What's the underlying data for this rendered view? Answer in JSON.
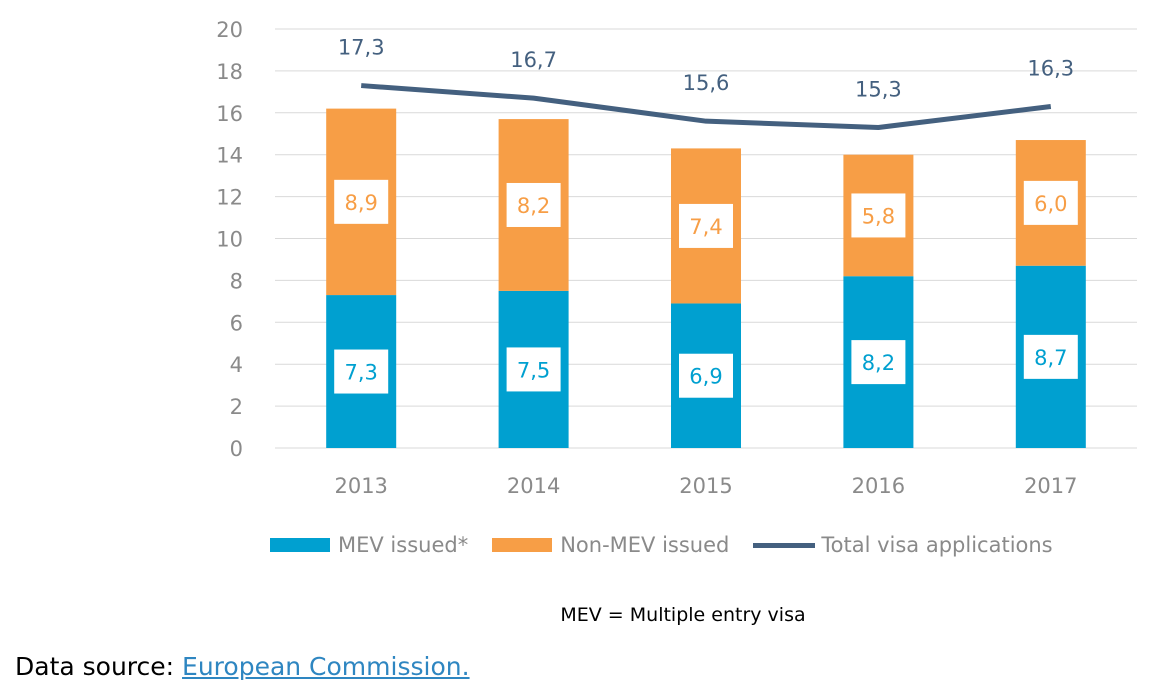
{
  "chart_data": {
    "type": "bar",
    "stacked": true,
    "categories": [
      "2013",
      "2014",
      "2015",
      "2016",
      "2017"
    ],
    "series": [
      {
        "name": "MEV issued*",
        "type": "bar",
        "color": "#00a0d0",
        "values": [
          7.3,
          7.5,
          6.9,
          8.2,
          8.7
        ],
        "labels": [
          "7,3",
          "7,5",
          "6,9",
          "8,2",
          "8,7"
        ]
      },
      {
        "name": "Non-MEV issued",
        "type": "bar",
        "color": "#f79e46",
        "values": [
          8.9,
          8.2,
          7.4,
          5.8,
          6.0
        ],
        "labels": [
          "8,9",
          "8,2",
          "7,4",
          "5,8",
          "6,0"
        ]
      },
      {
        "name": "Total visa applications",
        "type": "line",
        "color": "#44607f",
        "values": [
          17.3,
          16.7,
          15.6,
          15.3,
          16.3
        ],
        "labels": [
          "17,3",
          "16,7",
          "15,6",
          "15,3",
          "16,3"
        ]
      }
    ],
    "ylim": [
      0,
      20
    ],
    "yticks": [
      "0",
      "2",
      "4",
      "6",
      "8",
      "10",
      "12",
      "14",
      "16",
      "18",
      "20"
    ],
    "grid": true,
    "legend": "bottom"
  },
  "footnote": "MEV = Multiple entry visa",
  "source": {
    "prefix": "Data source: ",
    "link": "European Commission."
  }
}
